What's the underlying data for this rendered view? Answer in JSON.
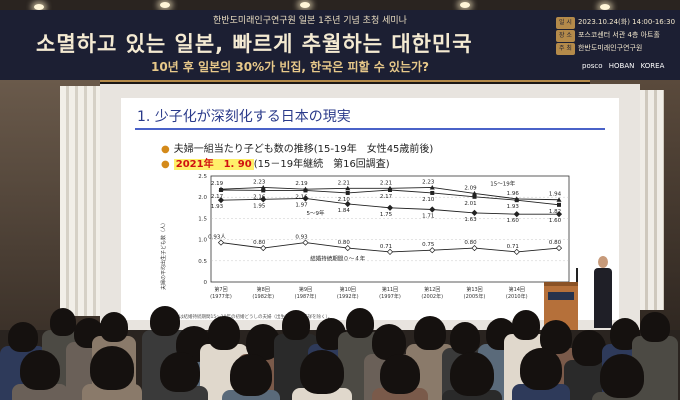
{
  "banner": {
    "top_line": "한반도미래인구연구원 일본 1주년 기념 초청 세미나",
    "title": "소멸하고 있는 일본, 빠르게 추월하는 대한민국",
    "subtitle": "10년 후 일본의 30%가 빈집, 한국은 피할 수 있는가?",
    "info": [
      {
        "tag": "일 시",
        "text": "2023.10.24(화) 14:00-16:30"
      },
      {
        "tag": "장 소",
        "text": "포스코센터 서관 4층 아트홀"
      },
      {
        "tag": "주 최",
        "text": "한반도미래인구연구원"
      }
    ],
    "logos": [
      "posco",
      "HOBAN",
      "KOREA"
    ]
  },
  "slide": {
    "title": "1. 少子化が深刻化する日本の現実",
    "bullet1": "夫婦一組当たり子ども数の推移(15-19年　女性45歳前後)",
    "bullet2_highlight": "2021年　1. 90",
    "bullet2_rest": "(15－19年継続　第16回調査)",
    "chart_note": "注：対象は結婚持続期間15～19年の初婚どうしの夫婦（出生子ども数不詳を除く）。"
  },
  "chart_data": {
    "type": "line",
    "categories": [
      "第7回(1977年)",
      "第8回(1982年)",
      "第9回(1987年)",
      "第10回(1992年)",
      "第11回(1997年)",
      "第12回(2002年)",
      "第13回(2005年)",
      "第14回(2010年)",
      "第15回(2015年)"
    ],
    "ylabel": "夫婦の平均出生子ども数（人）",
    "ylim": [
      0,
      2.5
    ],
    "yticks": [
      "0",
      "0.5",
      "1.0",
      "1.5",
      "2.0",
      "2.5"
    ],
    "series": [
      {
        "name": "15～19年",
        "values": [
          2.19,
          2.23,
          2.19,
          2.21,
          2.21,
          2.23,
          2.09,
          1.96,
          1.94
        ]
      },
      {
        "name": "",
        "values": [
          2.17,
          2.16,
          2.16,
          2.1,
          2.17,
          2.1,
          2.01,
          1.93,
          1.82
        ]
      },
      {
        "name": "5～9年",
        "values": [
          1.93,
          1.95,
          1.97,
          1.84,
          1.75,
          1.71,
          1.63,
          1.6,
          1.6
        ]
      },
      {
        "name": "結婚持続期間０～４年",
        "values": [
          0.93,
          0.8,
          0.93,
          0.8,
          0.71,
          0.75,
          0.8,
          0.71,
          0.8
        ]
      }
    ]
  }
}
